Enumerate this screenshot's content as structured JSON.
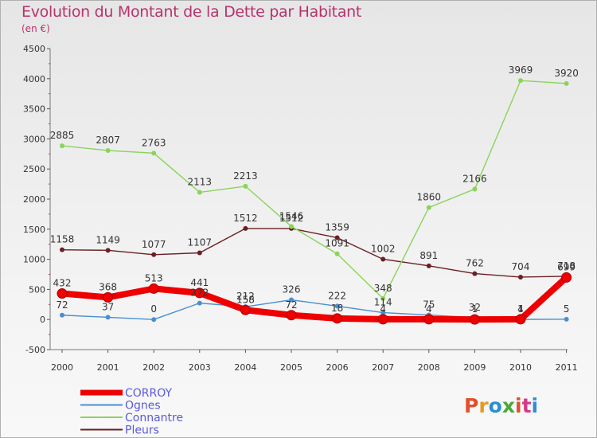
{
  "title": "Evolution du Montant de la Dette par Habitant",
  "subtitle": "(en €)",
  "logo": {
    "text": "Proxiti",
    "colors": [
      "#e0502a",
      "#e89a20",
      "#2a8fd0",
      "#4aa83a",
      "#e0502a",
      "#d43a8a",
      "#2a8fd0"
    ]
  },
  "chart_data": {
    "type": "line",
    "title": "Evolution du Montant de la Dette par Habitant",
    "subtitle": "(en €)",
    "x": [
      "2000",
      "2001",
      "2002",
      "2003",
      "2004",
      "2005",
      "2006",
      "2007",
      "2008",
      "2009",
      "2010",
      "2011"
    ],
    "ylim": [
      -500,
      4500
    ],
    "yticks": [
      -500,
      0,
      500,
      1000,
      1500,
      2000,
      2500,
      3000,
      3500,
      4000,
      4500
    ],
    "grid": false,
    "legend": "bottom-left",
    "series": [
      {
        "name": "Pleurs",
        "color": "#6b1f24",
        "values": [
          1158,
          1149,
          1077,
          1107,
          1512,
          1512,
          1359,
          1002,
          891,
          762,
          704,
          718
        ],
        "labels": [
          "1158",
          "1149",
          "1077",
          "1107",
          "1512",
          "1512",
          "1359",
          "1002",
          "891",
          "762",
          "704",
          "718"
        ]
      },
      {
        "name": "Connantre",
        "color": "#8ad45a",
        "values": [
          2885,
          2807,
          2763,
          2113,
          2213,
          1546,
          1091,
          348,
          1860,
          2166,
          3969,
          3920
        ],
        "labels": [
          "2885",
          "2807",
          "2763",
          "2113",
          "2213",
          "1546",
          "1091",
          "348",
          "1860",
          "2166",
          "3969",
          "3920"
        ]
      },
      {
        "name": "Ognes",
        "color": "#4a8fd0",
        "values": [
          72,
          37,
          0,
          272,
          212,
          326,
          222,
          114,
          75,
          32,
          1,
          5
        ],
        "labels": [
          "72",
          "37",
          "0",
          "272",
          "212",
          "326",
          "222",
          "114",
          "75",
          "32",
          "1",
          "5"
        ]
      },
      {
        "name": "CORROY",
        "color": "#ee0000",
        "values": [
          432,
          368,
          513,
          441,
          158,
          72,
          18,
          4,
          4,
          1,
          4,
          699
        ],
        "labels": [
          "432",
          "368",
          "513",
          "441",
          "158",
          "72",
          "18",
          "4",
          "4",
          "1",
          "4",
          "699"
        ]
      }
    ],
    "legend_order": [
      "CORROY",
      "Ognes",
      "Connantre",
      "Pleurs"
    ]
  }
}
